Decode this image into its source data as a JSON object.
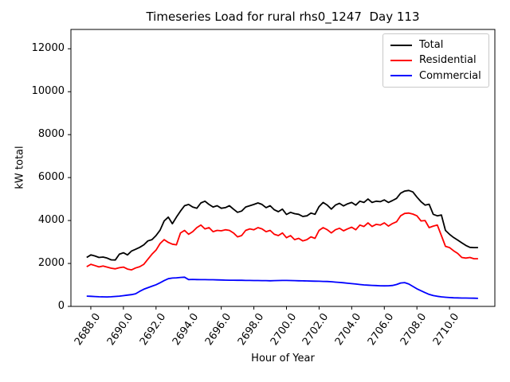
{
  "chart_data": {
    "type": "line",
    "title": "Timeseries Load for rural rhs0_1247  Day 113",
    "xlabel": "Hour of Year",
    "ylabel": "kW total",
    "grid": false,
    "legend_position": "upper right",
    "xlim": [
      2686.78,
      2712.78
    ],
    "ylim": [
      0,
      12900
    ],
    "xticks": [
      "2688.0",
      "2690.0",
      "2692.0",
      "2694.0",
      "2696.0",
      "2698.0",
      "2700.0",
      "2702.0",
      "2704.0",
      "2706.0",
      "2708.0",
      "2710.0"
    ],
    "yticks": [
      "0",
      "2000",
      "4000",
      "6000",
      "8000",
      "10000",
      "12000"
    ],
    "x": [
      2687.75,
      2688.0,
      2688.25,
      2688.5,
      2688.75,
      2689.0,
      2689.25,
      2689.5,
      2689.75,
      2690.0,
      2690.25,
      2690.5,
      2690.75,
      2691.0,
      2691.25,
      2691.5,
      2691.75,
      2692.0,
      2692.25,
      2692.5,
      2692.75,
      2693.0,
      2693.25,
      2693.5,
      2693.75,
      2694.0,
      2694.25,
      2694.5,
      2694.75,
      2695.0,
      2695.25,
      2695.5,
      2695.75,
      2696.0,
      2696.25,
      2696.5,
      2696.75,
      2697.0,
      2697.25,
      2697.5,
      2697.75,
      2698.0,
      2698.25,
      2698.5,
      2698.75,
      2699.0,
      2699.25,
      2699.5,
      2699.75,
      2700.0,
      2700.25,
      2700.5,
      2700.75,
      2701.0,
      2701.25,
      2701.5,
      2701.75,
      2702.0,
      2702.25,
      2702.5,
      2702.75,
      2703.0,
      2703.25,
      2703.5,
      2703.75,
      2704.0,
      2704.25,
      2704.5,
      2704.75,
      2705.0,
      2705.25,
      2705.5,
      2705.75,
      2706.0,
      2706.25,
      2706.5,
      2706.75,
      2707.0,
      2707.25,
      2707.5,
      2707.75,
      2708.0,
      2708.25,
      2708.5,
      2708.75,
      2709.0,
      2709.25,
      2709.5,
      2709.75,
      2710.0,
      2710.25,
      2710.5,
      2710.75,
      2711.0,
      2711.25,
      2711.5,
      2711.75
    ],
    "series": [
      {
        "name": "Total",
        "color": "#000000",
        "values": [
          2280,
          2400,
          2350,
          2280,
          2300,
          2250,
          2170,
          2160,
          2430,
          2500,
          2400,
          2580,
          2660,
          2750,
          2870,
          3050,
          3110,
          3300,
          3550,
          3980,
          4160,
          3850,
          4160,
          4440,
          4690,
          4750,
          4630,
          4570,
          4820,
          4900,
          4750,
          4630,
          4690,
          4570,
          4600,
          4690,
          4530,
          4380,
          4440,
          4630,
          4690,
          4750,
          4820,
          4750,
          4600,
          4690,
          4500,
          4410,
          4530,
          4280,
          4380,
          4320,
          4290,
          4190,
          4220,
          4350,
          4290,
          4650,
          4840,
          4720,
          4530,
          4720,
          4800,
          4680,
          4780,
          4840,
          4720,
          4900,
          4840,
          5000,
          4840,
          4900,
          4880,
          4960,
          4840,
          4930,
          5030,
          5270,
          5370,
          5400,
          5330,
          5090,
          4880,
          4720,
          4760,
          4290,
          4220,
          4260,
          3540,
          3360,
          3210,
          3090,
          2960,
          2840,
          2750,
          2740,
          2740
        ]
      },
      {
        "name": "Residential",
        "color": "#ff0000",
        "values": [
          1850,
          1960,
          1900,
          1840,
          1880,
          1830,
          1780,
          1750,
          1800,
          1830,
          1740,
          1700,
          1790,
          1850,
          1960,
          2200,
          2430,
          2620,
          2930,
          3110,
          2980,
          2900,
          2870,
          3420,
          3540,
          3360,
          3480,
          3670,
          3790,
          3610,
          3670,
          3480,
          3540,
          3520,
          3570,
          3540,
          3420,
          3240,
          3300,
          3540,
          3610,
          3570,
          3670,
          3610,
          3480,
          3540,
          3360,
          3300,
          3420,
          3200,
          3300,
          3110,
          3170,
          3050,
          3110,
          3240,
          3170,
          3540,
          3670,
          3570,
          3420,
          3570,
          3640,
          3520,
          3610,
          3690,
          3570,
          3790,
          3720,
          3890,
          3720,
          3820,
          3790,
          3890,
          3740,
          3860,
          3940,
          4220,
          4330,
          4350,
          4300,
          4220,
          3980,
          4000,
          3670,
          3740,
          3790,
          3300,
          2800,
          2740,
          2590,
          2470,
          2280,
          2250,
          2280,
          2220,
          2220
        ]
      },
      {
        "name": "Commercial",
        "color": "#0000ff",
        "values": [
          480,
          470,
          460,
          450,
          445,
          440,
          450,
          465,
          480,
          500,
          525,
          550,
          590,
          700,
          800,
          870,
          940,
          1010,
          1100,
          1200,
          1290,
          1320,
          1330,
          1350,
          1360,
          1250,
          1255,
          1250,
          1245,
          1245,
          1240,
          1240,
          1235,
          1230,
          1225,
          1220,
          1220,
          1215,
          1215,
          1210,
          1210,
          1205,
          1205,
          1200,
          1200,
          1195,
          1200,
          1205,
          1210,
          1210,
          1205,
          1200,
          1195,
          1190,
          1185,
          1180,
          1175,
          1170,
          1165,
          1160,
          1150,
          1130,
          1115,
          1100,
          1080,
          1060,
          1040,
          1020,
          1000,
          990,
          980,
          970,
          960,
          955,
          960,
          975,
          1020,
          1090,
          1110,
          1040,
          930,
          820,
          730,
          640,
          560,
          505,
          470,
          445,
          425,
          410,
          400,
          395,
          390,
          390,
          385,
          380,
          375
        ]
      }
    ]
  }
}
